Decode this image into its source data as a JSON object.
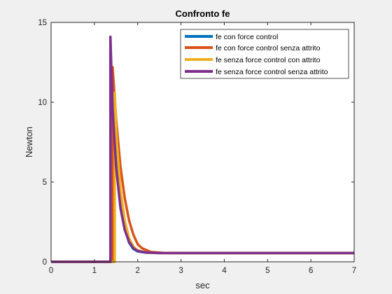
{
  "chart_data": {
    "type": "line",
    "title": "Confronto fe",
    "xlabel": "sec",
    "ylabel": "Newton",
    "xlim": [
      0,
      7
    ],
    "ylim": [
      0,
      15
    ],
    "xticks": [
      0,
      1,
      2,
      3,
      4,
      5,
      6,
      7
    ],
    "yticks": [
      0,
      5,
      10,
      15
    ],
    "grid": false,
    "legend_position": "top-right",
    "steady_value": 0.55,
    "series": [
      {
        "name": "fe con force control",
        "color": "#0072BD",
        "x": [
          0,
          1.45,
          1.45,
          1.5,
          1.55,
          1.6,
          1.7,
          1.8,
          1.9,
          2.0,
          2.2,
          2.5,
          3,
          4,
          5,
          6,
          7
        ],
        "y": [
          0,
          0,
          10.7,
          7.8,
          5.6,
          4.0,
          2.1,
          1.2,
          0.8,
          0.65,
          0.57,
          0.55,
          0.55,
          0.55,
          0.55,
          0.55,
          0.55
        ]
      },
      {
        "name": "fe con force control senza attrito",
        "color": "#D95319",
        "x": [
          0,
          1.42,
          1.42,
          1.5,
          1.6,
          1.7,
          1.8,
          1.9,
          2.0,
          2.1,
          2.3,
          2.6,
          3,
          4,
          5,
          6,
          7
        ],
        "y": [
          0,
          0,
          12.2,
          9.0,
          6.0,
          4.0,
          2.6,
          1.7,
          1.1,
          0.85,
          0.62,
          0.56,
          0.55,
          0.55,
          0.55,
          0.55,
          0.55
        ]
      },
      {
        "name": "fe senza force control con attrito",
        "color": "#EDB120",
        "x": [
          0,
          1.47,
          1.47,
          1.52,
          1.6,
          1.7,
          1.8,
          1.9,
          2.0,
          2.2,
          2.5,
          3,
          4,
          5,
          6,
          7
        ],
        "y": [
          0,
          0,
          10.6,
          7.4,
          4.6,
          2.6,
          1.5,
          0.95,
          0.72,
          0.58,
          0.55,
          0.55,
          0.55,
          0.55,
          0.55,
          0.55
        ]
      },
      {
        "name": "fe senza force control senza attrito",
        "color": "#7E2F8E",
        "x": [
          0,
          1.37,
          1.37,
          1.42,
          1.5,
          1.6,
          1.7,
          1.8,
          1.9,
          2.0,
          2.2,
          2.5,
          3,
          4,
          5,
          6,
          7
        ],
        "y": [
          0,
          0,
          14.1,
          9.6,
          6.0,
          3.4,
          2.0,
          1.25,
          0.85,
          0.68,
          0.58,
          0.55,
          0.55,
          0.55,
          0.55,
          0.55,
          0.55
        ]
      }
    ]
  }
}
